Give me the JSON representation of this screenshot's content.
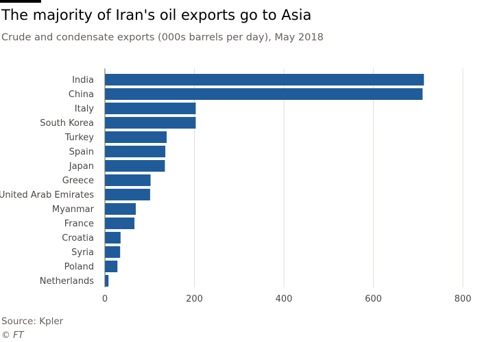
{
  "title": "The majority of Iran's oil exports go to Asia",
  "subtitle": "Crude and condensate exports (000s barrels per day), May 2018",
  "source": "Source: Kpler",
  "credit": "© FT",
  "colors": {
    "bar": "#1f5c99"
  },
  "chart_data": {
    "type": "bar",
    "orientation": "horizontal",
    "categories": [
      "India",
      "China",
      "Italy",
      "South Korea",
      "Turkey",
      "Spain",
      "Japan",
      "Greece",
      "United Arab Emirates",
      "Myanmar",
      "France",
      "Croatia",
      "Syria",
      "Poland",
      "Netherlands"
    ],
    "values": [
      713,
      710,
      203,
      203,
      138,
      135,
      134,
      102,
      101,
      69,
      66,
      35,
      34,
      28,
      8
    ],
    "xlim": [
      0,
      800
    ],
    "xticks": [
      0,
      200,
      400,
      600,
      800
    ],
    "grid": true
  }
}
